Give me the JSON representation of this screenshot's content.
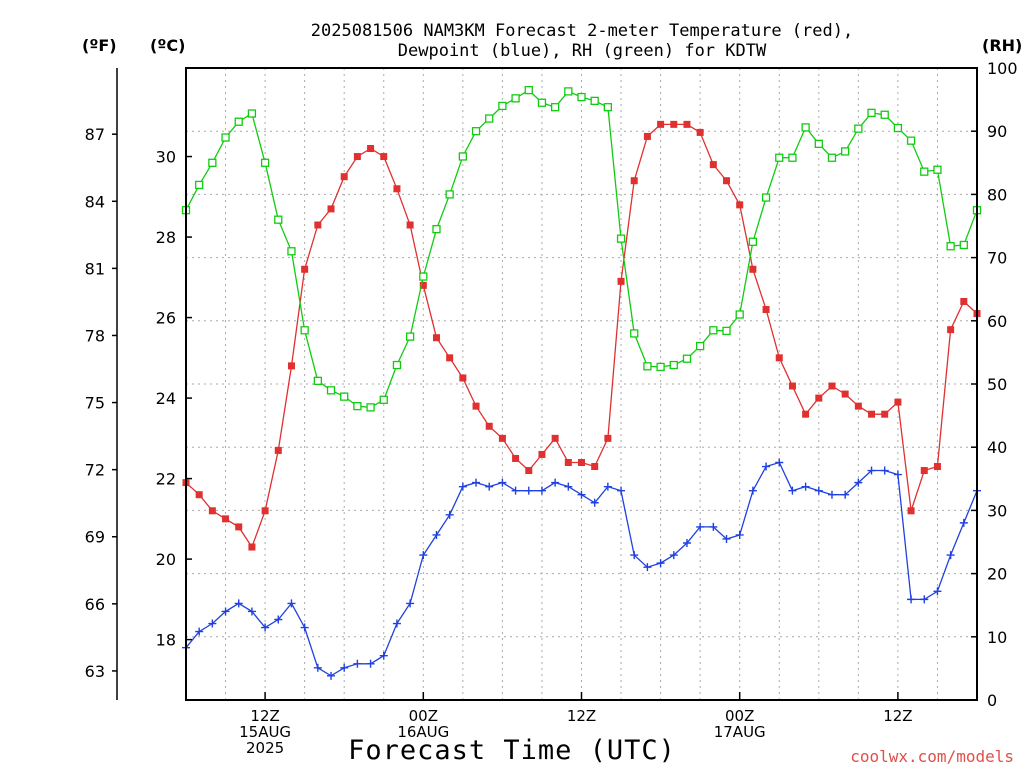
{
  "chart_data": {
    "type": "line",
    "title_lines": [
      "2025081506 NAM3KM Forecast 2-meter Temperature (red),",
      "Dewpoint (blue), RH (green) for KDTW"
    ],
    "xlabel": "Forecast Time (UTC)",
    "credit": "coolwx.com/models",
    "unit_labels": {
      "fahrenheit": "(ºF)",
      "celsius": "(ºC)",
      "rh": "(RH)"
    },
    "left_c_axis": {
      "ylim": [
        16.5,
        32.2
      ],
      "ticks": [
        "18",
        "20",
        "22",
        "24",
        "26",
        "28",
        "30"
      ]
    },
    "left_f_axis": {
      "ticks": [
        "63",
        "66",
        "69",
        "72",
        "75",
        "78",
        "81",
        "84",
        "87"
      ]
    },
    "right_rh_axis": {
      "ylim": [
        0,
        100
      ],
      "ticks": [
        "0",
        "10",
        "20",
        "30",
        "40",
        "50",
        "60",
        "70",
        "80",
        "90",
        "100"
      ]
    },
    "x_axis": {
      "hours_range": [
        6,
        66
      ],
      "ticks": [
        {
          "hour": 12,
          "lines": [
            "12Z",
            "15AUG",
            "2025"
          ]
        },
        {
          "hour": 24,
          "lines": [
            "00Z",
            "16AUG"
          ]
        },
        {
          "hour": 36,
          "lines": [
            "12Z"
          ]
        },
        {
          "hour": 48,
          "lines": [
            "00Z",
            "17AUG"
          ]
        },
        {
          "hour": 60,
          "lines": [
            "12Z"
          ]
        }
      ]
    },
    "grid": true,
    "series": [
      {
        "name": "2-meter Temperature",
        "color": "#e03030",
        "axis": "celsius",
        "marker": "filled-square",
        "values": [
          21.9,
          21.6,
          21.2,
          21.0,
          20.8,
          20.3,
          21.2,
          22.7,
          24.8,
          27.2,
          28.3,
          28.7,
          29.5,
          30.0,
          30.2,
          30.0,
          29.2,
          28.3,
          26.8,
          25.5,
          25.0,
          24.5,
          23.8,
          23.3,
          23.0,
          22.5,
          22.2,
          22.6,
          23.0,
          22.4,
          22.4,
          22.3,
          23.0,
          26.9,
          29.4,
          30.5,
          30.8,
          30.8,
          30.8,
          30.6,
          29.8,
          29.4,
          28.8,
          27.2,
          26.2,
          25.0,
          24.3,
          23.6,
          24.0,
          24.3,
          24.1,
          23.8,
          23.6,
          23.6,
          23.9,
          21.2,
          22.2,
          22.3,
          25.7,
          26.4,
          26.1
        ]
      },
      {
        "name": "Dewpoint",
        "color": "#2040e0",
        "axis": "celsius",
        "marker": "plus",
        "values": [
          17.8,
          18.2,
          18.4,
          18.7,
          18.9,
          18.7,
          18.3,
          18.5,
          18.9,
          18.3,
          17.3,
          17.1,
          17.3,
          17.4,
          17.4,
          17.6,
          18.4,
          18.9,
          20.1,
          20.6,
          21.1,
          21.8,
          21.9,
          21.8,
          21.9,
          21.7,
          21.7,
          21.7,
          21.9,
          21.8,
          21.6,
          21.4,
          21.8,
          21.7,
          20.1,
          19.8,
          19.9,
          20.1,
          20.4,
          20.8,
          20.8,
          20.5,
          20.6,
          21.7,
          22.3,
          22.4,
          21.7,
          21.8,
          21.7,
          21.6,
          21.6,
          21.9,
          22.2,
          22.2,
          22.1,
          19.0,
          19.0,
          19.2,
          20.1,
          20.9,
          21.7
        ]
      },
      {
        "name": "RH",
        "color": "#10cc10",
        "axis": "rh",
        "marker": "open-square",
        "values": [
          77.5,
          81.5,
          85.0,
          89.0,
          91.5,
          92.8,
          85.0,
          76.0,
          71.0,
          58.5,
          50.5,
          49.0,
          48.0,
          46.5,
          46.3,
          47.5,
          53.0,
          57.5,
          67.0,
          74.5,
          80.0,
          86.0,
          90.0,
          92.0,
          94.0,
          95.2,
          96.5,
          94.5,
          93.8,
          96.3,
          95.4,
          94.8,
          93.8,
          73.0,
          58.0,
          52.8,
          52.7,
          53.0,
          54.0,
          56.0,
          58.5,
          58.4,
          61.0,
          72.5,
          79.5,
          85.8,
          85.8,
          90.6,
          88.0,
          85.8,
          86.8,
          90.4,
          92.9,
          92.6,
          90.5,
          88.5,
          83.6,
          83.9,
          71.8,
          72.0,
          77.5
        ]
      }
    ]
  }
}
